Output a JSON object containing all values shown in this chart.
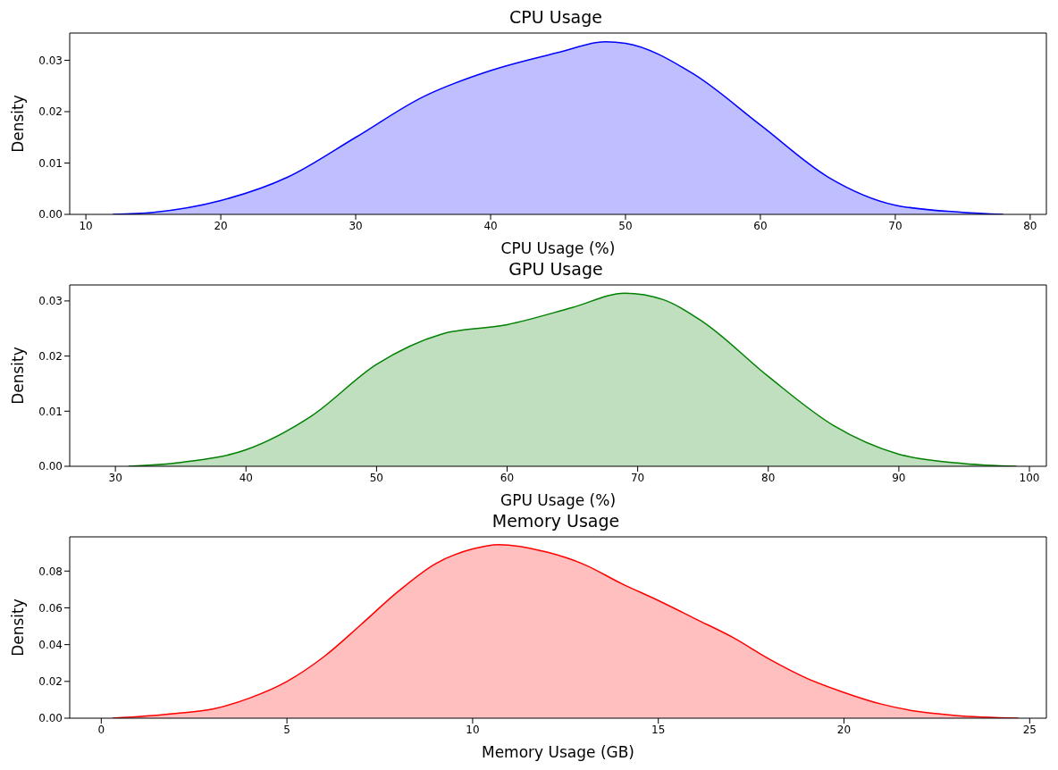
{
  "chart_data": [
    {
      "type": "area",
      "title": "CPU Usage",
      "xlabel": "CPU Usage (%)",
      "ylabel": "Density",
      "color": "#0000ff",
      "xlim": [
        8.8,
        81.2
      ],
      "ylim": [
        0,
        0.0353
      ],
      "xticks": [
        10,
        20,
        30,
        40,
        50,
        60,
        70,
        80
      ],
      "yticks": [
        {
          "value": 0,
          "label": "0.00"
        },
        {
          "value": 0.01,
          "label": "0.01"
        },
        {
          "value": 0.02,
          "label": "0.02"
        },
        {
          "value": 0.03,
          "label": "0.03"
        }
      ],
      "x": [
        12,
        15,
        20,
        25,
        30,
        35,
        40,
        45,
        48.5,
        50,
        55,
        60,
        65,
        70,
        75,
        78
      ],
      "values": [
        0,
        0.0004,
        0.0027,
        0.0073,
        0.015,
        0.0229,
        0.028,
        0.0315,
        0.0336,
        0.0333,
        0.0274,
        0.0174,
        0.0073,
        0.0018,
        0.0004,
        0
      ]
    },
    {
      "type": "area",
      "title": "GPU Usage",
      "xlabel": "GPU Usage (%)",
      "ylabel": "Density",
      "color": "#008000",
      "xlim": [
        26.5,
        101.3
      ],
      "ylim": [
        0,
        0.0329
      ],
      "xticks": [
        30,
        40,
        50,
        60,
        70,
        80,
        90,
        100
      ],
      "yticks": [
        {
          "value": 0,
          "label": "0.00"
        },
        {
          "value": 0.01,
          "label": "0.01"
        },
        {
          "value": 0.02,
          "label": "0.02"
        },
        {
          "value": 0.03,
          "label": "0.03"
        }
      ],
      "x": [
        31,
        35,
        40,
        45,
        50,
        55,
        60,
        65,
        69,
        72,
        75,
        80,
        85,
        90,
        95,
        99
      ],
      "values": [
        0,
        0.0007,
        0.003,
        0.0091,
        0.0185,
        0.024,
        0.0257,
        0.0288,
        0.0314,
        0.0302,
        0.0262,
        0.0163,
        0.0074,
        0.0022,
        0.0005,
        0
      ]
    },
    {
      "type": "area",
      "title": "Memory Usage",
      "xlabel": "Memory Usage (GB)",
      "ylabel": "Density",
      "color": "#ff0000",
      "xlim": [
        -0.85,
        25.45
      ],
      "ylim": [
        0,
        0.0986
      ],
      "xticks": [
        0,
        5,
        10,
        15,
        20,
        25
      ],
      "yticks": [
        {
          "value": 0,
          "label": "0.00"
        },
        {
          "value": 0.02,
          "label": "0.02"
        },
        {
          "value": 0.04,
          "label": "0.04"
        },
        {
          "value": 0.06,
          "label": "0.06"
        },
        {
          "value": 0.08,
          "label": "0.08"
        }
      ],
      "x": [
        0.3,
        2,
        3,
        4,
        5,
        6,
        7,
        8,
        9,
        10,
        10.7,
        12,
        13,
        14,
        15,
        16,
        17,
        18,
        19,
        20,
        21,
        22,
        23,
        24.7
      ],
      "values": [
        0,
        0.0026,
        0.005,
        0.011,
        0.02,
        0.0335,
        0.051,
        0.069,
        0.084,
        0.092,
        0.0944,
        0.0903,
        0.0836,
        0.0733,
        0.064,
        0.054,
        0.044,
        0.032,
        0.0217,
        0.014,
        0.0077,
        0.0036,
        0.0015,
        0
      ]
    }
  ]
}
